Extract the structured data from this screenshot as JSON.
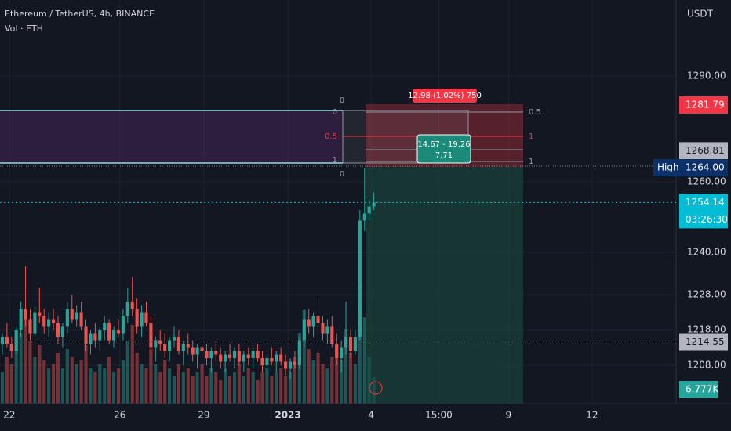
{
  "chart_data": {
    "type": "candlestick",
    "title": "Ethereum / TetherUS, 4h, BINANCE",
    "subtitle": "Vol · ETH",
    "currency": "USDT",
    "ohlc": [
      [
        1214,
        1217,
        1211,
        1216
      ],
      [
        1216,
        1220,
        1213,
        1214
      ],
      [
        1214,
        1216,
        1210,
        1212
      ],
      [
        1212,
        1219,
        1211,
        1218
      ],
      [
        1218,
        1226,
        1216,
        1224
      ],
      [
        1224,
        1236,
        1219,
        1221
      ],
      [
        1221,
        1224,
        1215,
        1217
      ],
      [
        1217,
        1225,
        1216,
        1223
      ],
      [
        1223,
        1230,
        1220,
        1222
      ],
      [
        1222,
        1224,
        1217,
        1219
      ],
      [
        1219,
        1223,
        1216,
        1221
      ],
      [
        1221,
        1224,
        1218,
        1220
      ],
      [
        1220,
        1222,
        1214,
        1216
      ],
      [
        1216,
        1220,
        1213,
        1219
      ],
      [
        1219,
        1226,
        1217,
        1224
      ],
      [
        1224,
        1228,
        1220,
        1221
      ],
      [
        1221,
        1225,
        1219,
        1223
      ],
      [
        1223,
        1226,
        1218,
        1219
      ],
      [
        1219,
        1221,
        1212,
        1214
      ],
      [
        1214,
        1218,
        1211,
        1217
      ],
      [
        1217,
        1220,
        1213,
        1215
      ],
      [
        1215,
        1219,
        1212,
        1218
      ],
      [
        1218,
        1222,
        1215,
        1220
      ],
      [
        1220,
        1221,
        1214,
        1215
      ],
      [
        1215,
        1219,
        1213,
        1218
      ],
      [
        1218,
        1221,
        1216,
        1217
      ],
      [
        1217,
        1224,
        1215,
        1222
      ],
      [
        1222,
        1230,
        1220,
        1226
      ],
      [
        1226,
        1233,
        1222,
        1224
      ],
      [
        1224,
        1227,
        1217,
        1219
      ],
      [
        1219,
        1225,
        1216,
        1223
      ],
      [
        1223,
        1226,
        1219,
        1220
      ],
      [
        1220,
        1222,
        1211,
        1213
      ],
      [
        1213,
        1216,
        1209,
        1215
      ],
      [
        1215,
        1218,
        1212,
        1214
      ],
      [
        1214,
        1217,
        1210,
        1212
      ],
      [
        1212,
        1216,
        1209,
        1215
      ],
      [
        1215,
        1219,
        1213,
        1216
      ],
      [
        1216,
        1218,
        1211,
        1212
      ],
      [
        1212,
        1215,
        1208,
        1214
      ],
      [
        1214,
        1217,
        1211,
        1213
      ],
      [
        1213,
        1215,
        1209,
        1211
      ],
      [
        1211,
        1214,
        1207,
        1213
      ],
      [
        1213,
        1216,
        1210,
        1212
      ],
      [
        1212,
        1214,
        1208,
        1210
      ],
      [
        1210,
        1213,
        1206,
        1212
      ],
      [
        1212,
        1215,
        1209,
        1211
      ],
      [
        1211,
        1213,
        1207,
        1209
      ],
      [
        1209,
        1212,
        1206,
        1211
      ],
      [
        1211,
        1214,
        1209,
        1210
      ],
      [
        1210,
        1213,
        1207,
        1212
      ],
      [
        1212,
        1214,
        1208,
        1209
      ],
      [
        1209,
        1212,
        1206,
        1211
      ],
      [
        1211,
        1213,
        1208,
        1210
      ],
      [
        1210,
        1213,
        1207,
        1212
      ],
      [
        1212,
        1214,
        1209,
        1210
      ],
      [
        1210,
        1212,
        1206,
        1208
      ],
      [
        1208,
        1211,
        1205,
        1210
      ],
      [
        1210,
        1213,
        1208,
        1209
      ],
      [
        1209,
        1212,
        1206,
        1211
      ],
      [
        1211,
        1213,
        1208,
        1209
      ],
      [
        1209,
        1211,
        1205,
        1207
      ],
      [
        1207,
        1210,
        1204,
        1209
      ],
      [
        1209,
        1212,
        1207,
        1208
      ],
      [
        1208,
        1216,
        1207,
        1215
      ],
      [
        1215,
        1224,
        1213,
        1221
      ],
      [
        1221,
        1224,
        1217,
        1219
      ],
      [
        1219,
        1223,
        1216,
        1222
      ],
      [
        1222,
        1227,
        1219,
        1220
      ],
      [
        1220,
        1222,
        1215,
        1217
      ],
      [
        1217,
        1221,
        1214,
        1219
      ],
      [
        1219,
        1222,
        1213,
        1214
      ],
      [
        1214,
        1217,
        1208,
        1210
      ],
      [
        1210,
        1215,
        1206,
        1213
      ],
      [
        1213,
        1226,
        1211,
        1216
      ],
      [
        1216,
        1218,
        1210,
        1212
      ],
      [
        1212,
        1218,
        1211,
        1216
      ],
      [
        1216,
        1252,
        1215,
        1249
      ],
      [
        1249,
        1264,
        1246,
        1251
      ],
      [
        1251,
        1255,
        1249,
        1253
      ],
      [
        1253,
        1257,
        1252,
        1254.14
      ]
    ],
    "volume": [
      8,
      12,
      10,
      14,
      18,
      22,
      16,
      12,
      15,
      11,
      9,
      10,
      13,
      9,
      14,
      12,
      10,
      11,
      15,
      9,
      8,
      10,
      9,
      12,
      8,
      9,
      11,
      16,
      20,
      13,
      10,
      9,
      14,
      10,
      8,
      11,
      9,
      7,
      10,
      8,
      9,
      7,
      8,
      10,
      7,
      9,
      8,
      6,
      9,
      7,
      8,
      10,
      7,
      9,
      8,
      6,
      8,
      9,
      7,
      8,
      9,
      7,
      8,
      12,
      18,
      24,
      14,
      11,
      13,
      10,
      9,
      12,
      15,
      11,
      19,
      13,
      10,
      30,
      22,
      12,
      6.777
    ],
    "volume_lim": [
      0,
      40
    ],
    "up_color": "#26a69a",
    "down_color": "#ef5350",
    "xlim": [
      -0.5,
      145.1
    ],
    "xticks": [
      {
        "value": 1.5,
        "label": "22"
      },
      {
        "value": 25.3,
        "label": "26"
      },
      {
        "value": 43.4,
        "label": "29"
      },
      {
        "value": 61.5,
        "label": "2023"
      },
      {
        "value": 79.4,
        "label": "4"
      },
      {
        "value": 94,
        "label": "15:00"
      },
      {
        "value": 109,
        "label": "9"
      },
      {
        "value": 127,
        "label": "12"
      }
    ],
    "ylim": [
      1197.11,
      1311.56
    ],
    "yticks": [
      {
        "value": 1290,
        "label": "1290.00"
      },
      {
        "value": 1260,
        "label": "1260.00"
      },
      {
        "value": 1240,
        "label": "1240.00"
      },
      {
        "value": 1228,
        "label": "1228.00"
      },
      {
        "value": 1218,
        "label": "1218.00"
      },
      {
        "value": 1208,
        "label": "1208.00"
      }
    ],
    "price_tags": [
      {
        "value": 1281.79,
        "label": "1281.79",
        "color": "#f23645"
      },
      {
        "value": 1268.81,
        "label": "1268.81",
        "color": "#b2b5be"
      },
      {
        "value": 1264,
        "label": "1264.00",
        "color": "#0c3069"
      },
      {
        "value": 1214.55,
        "label": "1214.55",
        "color": "#b2b5be"
      }
    ],
    "high_label": "High",
    "last_price": {
      "value": 1254.14,
      "label": "1254.14",
      "countdown": "03:26:30",
      "color": "#00bcd4"
    },
    "volume_tag": "6.777K",
    "position_label": "12.98 (1.02%) 750",
    "range_label": "14.67 - 19.26",
    "range_sub": "7.71",
    "fib_labels": [
      "0",
      "0.5",
      "1",
      "0",
      "0",
      "0.5",
      "1"
    ]
  }
}
